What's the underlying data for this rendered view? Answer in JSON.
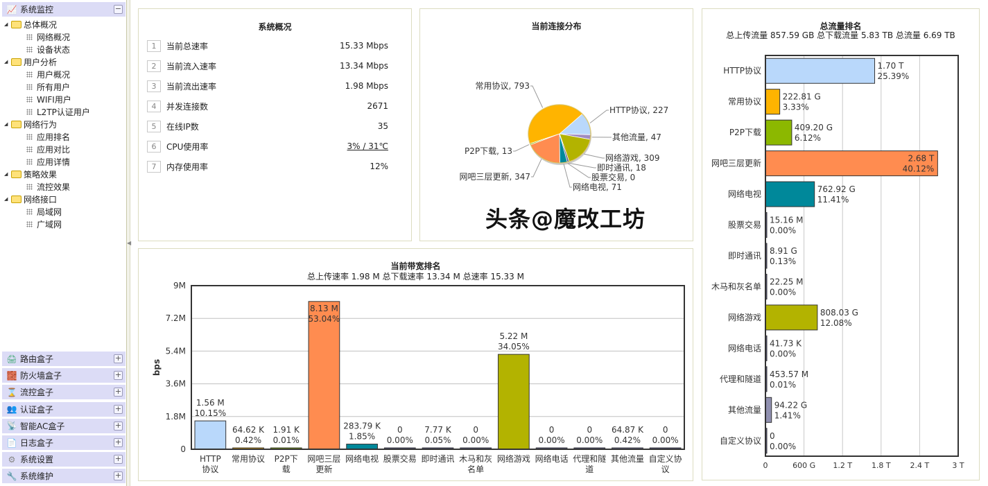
{
  "sidebar": {
    "header": {
      "label": "系统监控",
      "icon": "chart-line-icon",
      "toggle": "−"
    },
    "tree": [
      {
        "label": "总体概况",
        "children": [
          "网络概况",
          "设备状态"
        ]
      },
      {
        "label": "用户分析",
        "children": [
          "用户概况",
          "所有用户",
          "WIFI用户",
          "L2TP认证用户"
        ]
      },
      {
        "label": "网络行为",
        "children": [
          "应用排名",
          "应用对比",
          "应用详情"
        ]
      },
      {
        "label": "策略效果",
        "children": [
          "流控效果"
        ]
      },
      {
        "label": "网络接口",
        "children": [
          "局域网",
          "广域网"
        ]
      }
    ],
    "sections": [
      {
        "label": "路由盒子",
        "icon": "router-icon",
        "toggle": "+"
      },
      {
        "label": "防火墙盒子",
        "icon": "firewall-icon",
        "toggle": "+"
      },
      {
        "label": "流控盒子",
        "icon": "hourglass-icon",
        "toggle": "+"
      },
      {
        "label": "认证盒子",
        "icon": "users-icon",
        "toggle": "+"
      },
      {
        "label": "智能AC盒子",
        "icon": "access-point-icon",
        "toggle": "+"
      },
      {
        "label": "日志盒子",
        "icon": "document-icon",
        "toggle": "+"
      },
      {
        "label": "系统设置",
        "icon": "gear-icon",
        "toggle": "+"
      },
      {
        "label": "系统维护",
        "icon": "wrench-icon",
        "toggle": "+"
      }
    ]
  },
  "overview": {
    "title": "系统概况",
    "rows": [
      {
        "num": "1",
        "label": "当前总速率",
        "value": "15.33 Mbps"
      },
      {
        "num": "2",
        "label": "当前流入速率",
        "value": "13.34 Mbps"
      },
      {
        "num": "3",
        "label": "当前流出速率",
        "value": "1.98 Mbps"
      },
      {
        "num": "4",
        "label": "并发连接数",
        "value": "2671"
      },
      {
        "num": "5",
        "label": "在线IP数",
        "value": "35"
      },
      {
        "num": "6",
        "label": "CPU使用率",
        "value": "3% / 31℃"
      },
      {
        "num": "7",
        "label": "内存使用率",
        "value": "12%"
      }
    ]
  },
  "chart_data": [
    {
      "type": "pie",
      "title": "当前连接分布",
      "slices": [
        {
          "label": "HTTP协议",
          "value": 227,
          "color": "#b9d8fb"
        },
        {
          "label": "其他流量",
          "value": 47,
          "color": "#a08cc0"
        },
        {
          "label": "网络游戏",
          "value": 309,
          "color": "#b3b300"
        },
        {
          "label": "即时通讯",
          "value": 18,
          "color": "#5a5a8a"
        },
        {
          "label": "股票交易",
          "value": 0,
          "color": "#7070a0"
        },
        {
          "label": "网络电视",
          "value": 71,
          "color": "#00889a"
        },
        {
          "label": "网吧三层更新",
          "value": 347,
          "color": "#ff8c50"
        },
        {
          "label": "P2P下载",
          "value": 13,
          "color": "#8cb800"
        },
        {
          "label": "常用协议",
          "value": 793,
          "color": "#ffb400"
        }
      ]
    },
    {
      "type": "bar",
      "title": "当前带宽排名",
      "subtitle": "总上传速率 1.98 M 总下载速率 13.34 M 总速率 15.33 M",
      "ylabel": "bps",
      "ylim": [
        0,
        9000000
      ],
      "yticks": [
        "0",
        "1.8M",
        "3.6M",
        "5.4M",
        "7.2M",
        "9M"
      ],
      "grid": true,
      "categories": [
        "HTTP协议",
        "常用协议",
        "P2P下载",
        "网吧三层更新",
        "网络电视",
        "股票交易",
        "即时通讯",
        "木马和灰名单",
        "网络游戏",
        "网络电话",
        "代理和隧道",
        "其他流量",
        "自定义协议"
      ],
      "values": [
        1560000,
        64620,
        1910,
        8130000,
        283790,
        0,
        7770,
        0,
        5220000,
        0,
        0,
        64870,
        0
      ],
      "value_labels": [
        "1.56 M",
        "64.62 K",
        "1.91 K",
        "8.13 M",
        "283.79 K",
        "0",
        "7.77 K",
        "0",
        "5.22 M",
        "0",
        "0",
        "64.87 K",
        "0"
      ],
      "percent_labels": [
        "10.15%",
        "0.42%",
        "0.01%",
        "53.04%",
        "1.85%",
        "0.00%",
        "0.05%",
        "0.00%",
        "34.05%",
        "0.00%",
        "0.00%",
        "0.42%",
        "0.00%"
      ],
      "colors": [
        "#b9d8fb",
        "#ffb400",
        "#8cb800",
        "#ff8c50",
        "#00889a",
        "#5a5a8a",
        "#5a5a8a",
        "#5a5a8a",
        "#b3b300",
        "#5a5a8a",
        "#5a5a8a",
        "#7070a0",
        "#5a5a8a"
      ]
    },
    {
      "type": "bar",
      "orientation": "horizontal",
      "title": "总流量排名",
      "subtitle": "总上传流量 857.59 GB 总下载流量 5.83 TB 总流量 6.69 TB",
      "xlim": [
        0,
        3.0
      ],
      "xunit": "TB",
      "xticks": [
        "0",
        "600 G",
        "1.2 T",
        "1.8 T",
        "2.4 T",
        "3 T"
      ],
      "grid": true,
      "categories": [
        "HTTP协议",
        "常用协议",
        "P2P下载",
        "网吧三层更新",
        "网络电视",
        "股票交易",
        "即时通讯",
        "木马和灰名单",
        "网络游戏",
        "网络电话",
        "代理和隧道",
        "其他流量",
        "自定义协议"
      ],
      "values": [
        1.7,
        0.22281,
        0.4092,
        2.68,
        0.76292,
        1.516e-05,
        0.00891,
        2.225e-05,
        0.80803,
        4.173e-08,
        0.00045357,
        0.09422,
        0
      ],
      "value_labels": [
        "1.70 T",
        "222.81 G",
        "409.20 G",
        "2.68 T",
        "762.92 G",
        "15.16 M",
        "8.91 G",
        "22.25 M",
        "808.03 G",
        "41.73 K",
        "453.57 M",
        "94.22 G",
        "0"
      ],
      "percent_labels": [
        "25.39%",
        "3.33%",
        "6.12%",
        "40.12%",
        "11.41%",
        "0.00%",
        "0.13%",
        "0.00%",
        "12.08%",
        "0.00%",
        "0.01%",
        "1.41%",
        "0.00%"
      ],
      "colors": [
        "#b9d8fb",
        "#ffb400",
        "#8cb800",
        "#ff8c50",
        "#00889a",
        "#5a5a8a",
        "#5a5a8a",
        "#5a5a8a",
        "#b3b300",
        "#5a5a8a",
        "#5a5a8a",
        "#9090b0",
        "#5a5a8a"
      ]
    }
  ],
  "watermark": "头条@魔改工坊"
}
